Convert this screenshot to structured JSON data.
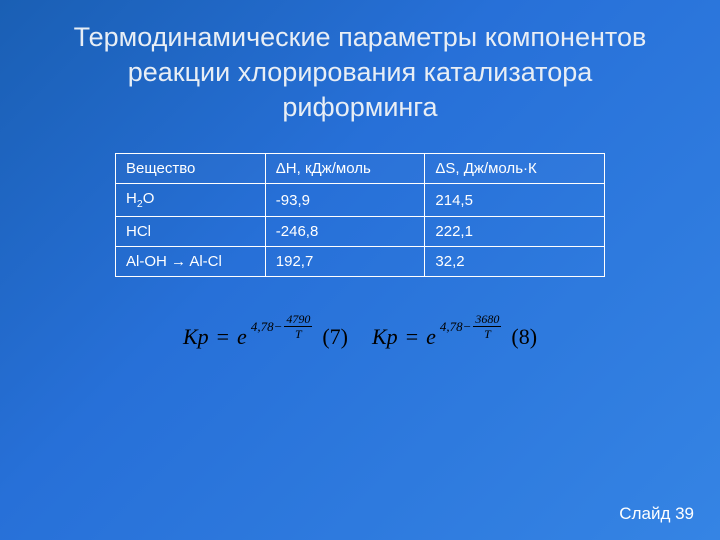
{
  "title": "Термодинамические параметры компонентов реакции хлорирования катализатора риформинга",
  "table": {
    "headers": [
      "Вещество",
      "ΔH, кДж/моль",
      "ΔS, Дж/моль·К"
    ],
    "rows": [
      {
        "c0": "H",
        "c0sub": "2",
        "c0tail": "O",
        "c1": "-93,9",
        "c2": "214,5"
      },
      {
        "c0": "HCl",
        "c0sub": "",
        "c0tail": "",
        "c1": "-246,8",
        "c2": "222,1"
      },
      {
        "c0": "Al-OH → Al-Cl",
        "c0sub": "",
        "c0tail": "",
        "c1": "192,7",
        "c2": "32,2"
      }
    ],
    "border_color": "#ffffff",
    "text_color": "#ffffff"
  },
  "equations": {
    "eq1": {
      "lhs": "Kp",
      "base": "e",
      "const": "4,78",
      "minus": "−",
      "num": "4790",
      "den": "T",
      "label": "(7)"
    },
    "eq2": {
      "lhs": "Kp",
      "base": "e",
      "const": "4,78",
      "minus": "−",
      "num": "3680",
      "den": "T",
      "label": "(8)"
    },
    "text_color": "#000000"
  },
  "footer": "Слайд 39",
  "background": {
    "start": "#1a5fb4",
    "mid": "#2770d8",
    "end": "#3584e4"
  }
}
